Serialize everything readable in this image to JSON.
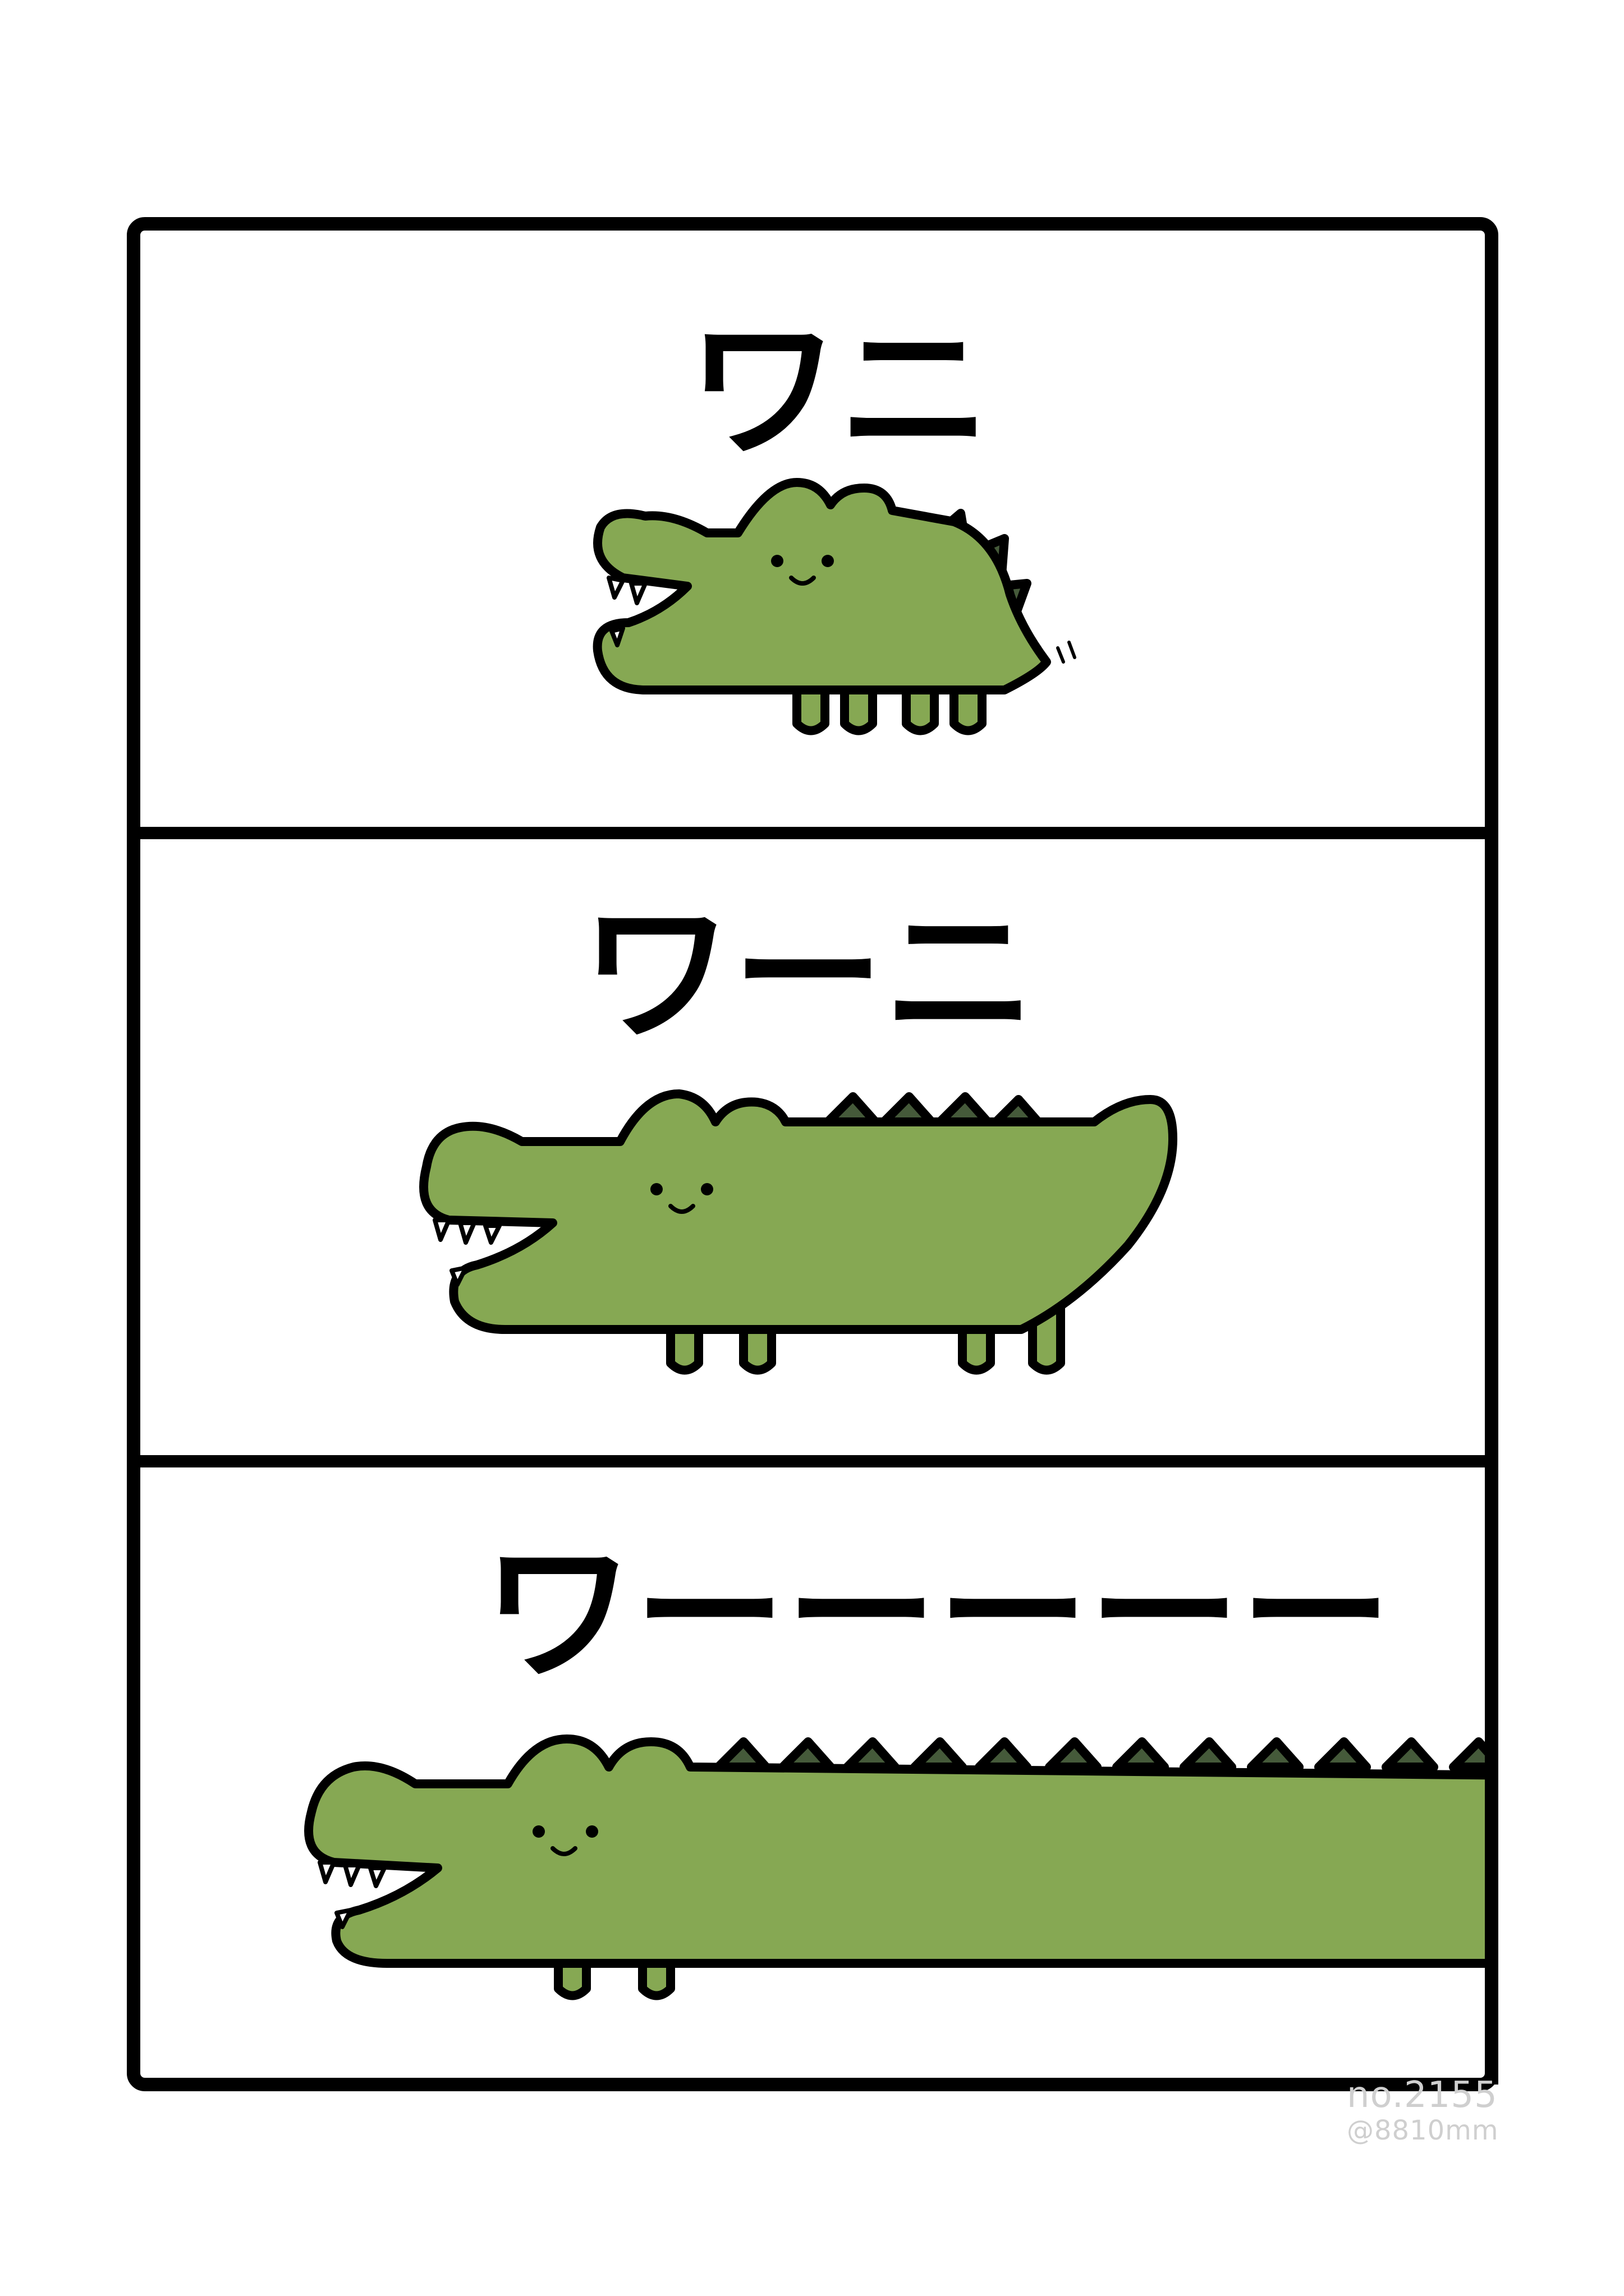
{
  "panels": [
    {
      "title": "ワニ"
    },
    {
      "title": "ワーニ"
    },
    {
      "title": "ワーーーーー"
    }
  ],
  "caption": {
    "number": "no.2155",
    "handle": "@8810mm"
  },
  "colors": {
    "crocodile_body": "#86a853",
    "crocodile_spikes": "#455a3a",
    "outline": "#000000",
    "caption_text": "#cfcfcf",
    "background": "#ffffff"
  }
}
